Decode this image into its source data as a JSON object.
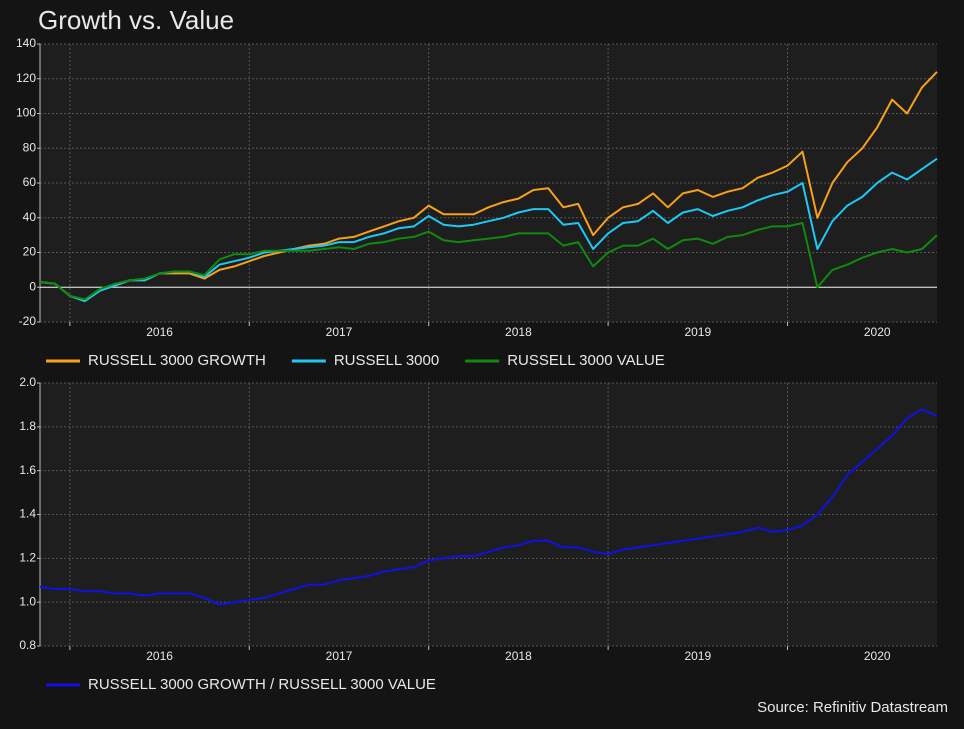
{
  "title": "Growth vs. Value",
  "source": "Source: Refinitiv Datastream",
  "chart_data": [
    {
      "type": "line",
      "categories": [
        null,
        null,
        null,
        null,
        null,
        null,
        null,
        null,
        "2016",
        null,
        null,
        null,
        null,
        null,
        null,
        null,
        null,
        null,
        null,
        null,
        "2017",
        null,
        null,
        null,
        null,
        null,
        null,
        null,
        null,
        null,
        null,
        null,
        "2018",
        null,
        null,
        null,
        null,
        null,
        null,
        null,
        null,
        null,
        null,
        null,
        "2019",
        null,
        null,
        null,
        null,
        null,
        null,
        null,
        null,
        null,
        null,
        null,
        "2020",
        null,
        null,
        null,
        null
      ],
      "series": [
        {
          "name": "RUSSELL 3000 GROWTH",
          "color": "#f7a11a",
          "values": [
            3,
            2,
            -5,
            -8,
            -2,
            1,
            4,
            4,
            8,
            8,
            8,
            5,
            10,
            12,
            15,
            18,
            20,
            22,
            24,
            25,
            28,
            29,
            32,
            35,
            38,
            40,
            47,
            42,
            42,
            42,
            46,
            49,
            51,
            56,
            57,
            46,
            48,
            30,
            40,
            46,
            48,
            54,
            46,
            54,
            56,
            52,
            55,
            57,
            63,
            66,
            70,
            78,
            40,
            60,
            72,
            80,
            92,
            108,
            100,
            115,
            124
          ]
        },
        {
          "name": "RUSSELL 3000",
          "color": "#1ec8f5",
          "values": [
            3,
            2,
            -5,
            -8,
            -2,
            1,
            4,
            4,
            8,
            9,
            9,
            6,
            13,
            15,
            17,
            20,
            21,
            22,
            23,
            24,
            26,
            26,
            29,
            31,
            34,
            35,
            41,
            36,
            35,
            36,
            38,
            40,
            43,
            45,
            45,
            36,
            37,
            22,
            31,
            37,
            38,
            44,
            37,
            43,
            45,
            41,
            44,
            46,
            50,
            53,
            55,
            60,
            22,
            38,
            47,
            52,
            60,
            66,
            62,
            68,
            74
          ]
        },
        {
          "name": "RUSSELL 3000 VALUE",
          "color": "#0f8a0f",
          "values": [
            3,
            2,
            -5,
            -7,
            -1,
            2,
            4,
            5,
            8,
            9,
            9,
            7,
            16,
            19,
            19,
            21,
            21,
            21,
            21,
            22,
            23,
            22,
            25,
            26,
            28,
            29,
            32,
            27,
            26,
            27,
            28,
            29,
            31,
            31,
            31,
            24,
            26,
            12,
            20,
            24,
            24,
            28,
            22,
            27,
            28,
            25,
            29,
            30,
            33,
            35,
            35,
            37,
            0,
            10,
            13,
            17,
            20,
            22,
            20,
            22,
            30
          ]
        }
      ],
      "ylim": [
        -20,
        140
      ],
      "yticks": [
        -20,
        0,
        20,
        40,
        60,
        80,
        100,
        120,
        140
      ],
      "grid": true,
      "zero_line": true
    },
    {
      "type": "line",
      "categories": [
        null,
        null,
        null,
        null,
        null,
        null,
        null,
        null,
        "2016",
        null,
        null,
        null,
        null,
        null,
        null,
        null,
        null,
        null,
        null,
        null,
        "2017",
        null,
        null,
        null,
        null,
        null,
        null,
        null,
        null,
        null,
        null,
        null,
        "2018",
        null,
        null,
        null,
        null,
        null,
        null,
        null,
        null,
        null,
        null,
        null,
        "2019",
        null,
        null,
        null,
        null,
        null,
        null,
        null,
        null,
        null,
        null,
        null,
        "2020",
        null,
        null,
        null,
        null
      ],
      "series": [
        {
          "name": "RUSSELL 3000 GROWTH / RUSSELL 3000 VALUE",
          "color": "#1010e8",
          "values": [
            1.07,
            1.06,
            1.06,
            1.05,
            1.05,
            1.04,
            1.04,
            1.03,
            1.04,
            1.04,
            1.04,
            1.02,
            0.99,
            1.0,
            1.01,
            1.02,
            1.04,
            1.06,
            1.08,
            1.08,
            1.1,
            1.11,
            1.12,
            1.14,
            1.15,
            1.16,
            1.19,
            1.2,
            1.21,
            1.21,
            1.23,
            1.25,
            1.26,
            1.28,
            1.28,
            1.25,
            1.25,
            1.23,
            1.22,
            1.24,
            1.25,
            1.26,
            1.27,
            1.28,
            1.29,
            1.3,
            1.31,
            1.32,
            1.34,
            1.32,
            1.33,
            1.35,
            1.4,
            1.48,
            1.58,
            1.64,
            1.7,
            1.76,
            1.84,
            1.88,
            1.85
          ]
        }
      ],
      "ylim": [
        0.8,
        2.0
      ],
      "yticks": [
        0.8,
        {
          "value": 1,
          "label": "1.0"
        },
        1.2,
        1.4,
        1.6,
        1.8,
        {
          "value": 2,
          "label": "2.0"
        }
      ],
      "grid": true,
      "zero_line": false
    }
  ]
}
